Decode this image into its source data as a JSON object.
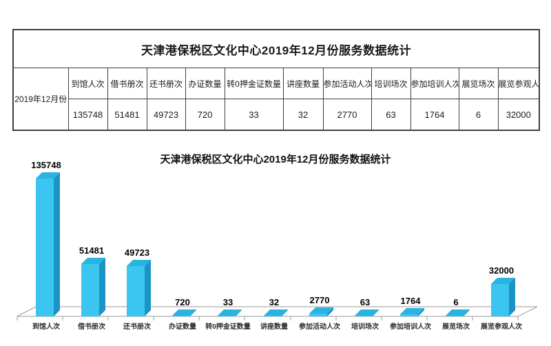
{
  "table": {
    "title": "天津港保税区文化中心2019年12月份服务数据统计",
    "row_label": "2019年12月份",
    "columns": [
      "到馆人次",
      "借书册次",
      "还书册次",
      "办证数量",
      "转0押金证数量",
      "讲座数量",
      "参加活动人次",
      "培训场次",
      "参加培训人次",
      "展览场次",
      "展览参观人次"
    ],
    "values": [
      "135748",
      "51481",
      "49723",
      "720",
      "33",
      "32",
      "2770",
      "63",
      "1764",
      "6",
      "32000"
    ]
  },
  "chart_data": {
    "type": "bar",
    "style": "3d-column",
    "title": "天津港保税区文化中心2019年12月份服务数据统计",
    "categories": [
      "到馆人次",
      "借书册次",
      "还书册次",
      "办证数量",
      "转0押金证数量",
      "讲座数量",
      "参加活动人次",
      "培训场次",
      "参加培训人次",
      "展览场次",
      "展览参观人次"
    ],
    "values": [
      135748,
      51481,
      49723,
      720,
      33,
      32,
      2770,
      63,
      1764,
      6,
      32000
    ],
    "data_labels": true,
    "legend": "none",
    "xlabel": "",
    "ylabel": "",
    "ylim": [
      0,
      140000
    ],
    "grid": "off",
    "colors": {
      "bar_front": "#3AC6F0",
      "bar_top": "#2BB3DF",
      "bar_side": "#1B93C5",
      "axis": "#999999",
      "label": "#000000"
    }
  }
}
